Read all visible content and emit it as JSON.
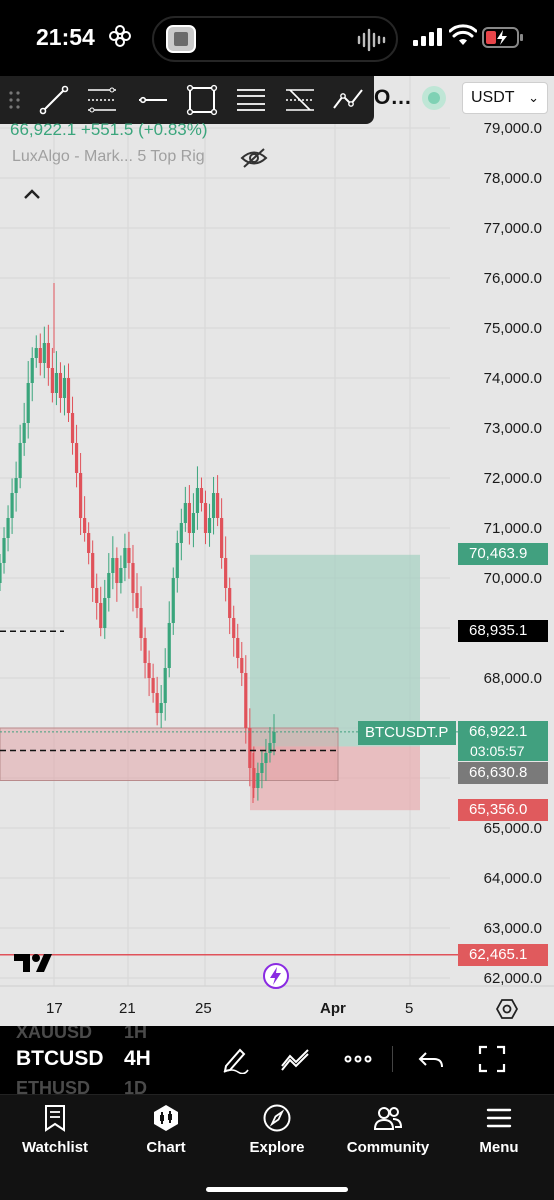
{
  "status_bar": {
    "time": "21:54",
    "icons": [
      "flower-icon",
      "island-thumbnail",
      "audio-waveform-icon",
      "cellular-signal-icon",
      "wifi-icon",
      "battery-charging-icon"
    ]
  },
  "toolbar": {
    "tools": [
      "trend-line-icon",
      "fib-retracement-icon",
      "horizontal-line-icon",
      "rectangle-icon",
      "parallel-channel-icon",
      "pitchfork-icon",
      "path-icon"
    ],
    "symbol_truncated": "O...",
    "currency": "USDT",
    "currency_options": [
      "USDT"
    ]
  },
  "legend": {
    "price_change": "66,922.1 +551.5 (+0.83%)",
    "indicator": "LuxAlgo - Mark... 5 Top Rig"
  },
  "price_axis": {
    "ticks": [
      "79,000.0",
      "78,000.0",
      "77,000.0",
      "76,000.0",
      "75,000.0",
      "74,000.0",
      "73,000.0",
      "72,000.0",
      "71,000.0",
      "70,000.0",
      "68,000.0",
      "65,000.0",
      "64,000.0",
      "63,000.0",
      "62,000.0"
    ],
    "tags": {
      "take_profit": "70,463.9",
      "level_black": "68,935.1",
      "current": "66,922.1",
      "countdown": "03:05:57",
      "entry": "66,630.8",
      "stop_loss": "65,356.0",
      "red_line": "62,465.1"
    },
    "symbol_tag": "BTCUSDT.P",
    "colors": {
      "green": "#41a07f",
      "red": "#e05a5d",
      "black": "#000000",
      "gray": "#7a7a7a"
    }
  },
  "time_axis": {
    "ticks": [
      "17",
      "21",
      "25",
      "Apr",
      "5"
    ]
  },
  "chart_data": {
    "type": "candlestick",
    "symbol": "BTCUSDT.P",
    "interval": "4H",
    "ylim": [
      61700,
      79400
    ],
    "x_ticks": [
      "17",
      "21",
      "25",
      "Apr",
      "5"
    ],
    "last_price": 66922.1,
    "levels": {
      "take_profit": 70463.9,
      "black_line": 68935.1,
      "entry": 66630.8,
      "stop_loss": 65356.0,
      "red_line": 62465.1
    },
    "bull_color": "#3aa57c",
    "bear_color": "#e0525a"
  },
  "symbol_bar": {
    "ghost_above": [
      "XAUUSD",
      "1H"
    ],
    "symbol": "BTCUSD",
    "interval": "4H",
    "ghost_below": [
      "ETHUSD",
      "1D"
    ],
    "icons": [
      "drawing-pen-icon",
      "indicators-icon",
      "more-icon",
      "undo-icon",
      "fullscreen-icon"
    ]
  },
  "bottom_nav": {
    "items": [
      {
        "label": "Watchlist",
        "icon": "watchlist-icon"
      },
      {
        "label": "Chart",
        "icon": "chart-icon"
      },
      {
        "label": "Explore",
        "icon": "compass-icon"
      },
      {
        "label": "Community",
        "icon": "community-icon"
      },
      {
        "label": "Menu",
        "icon": "menu-icon"
      }
    ]
  }
}
